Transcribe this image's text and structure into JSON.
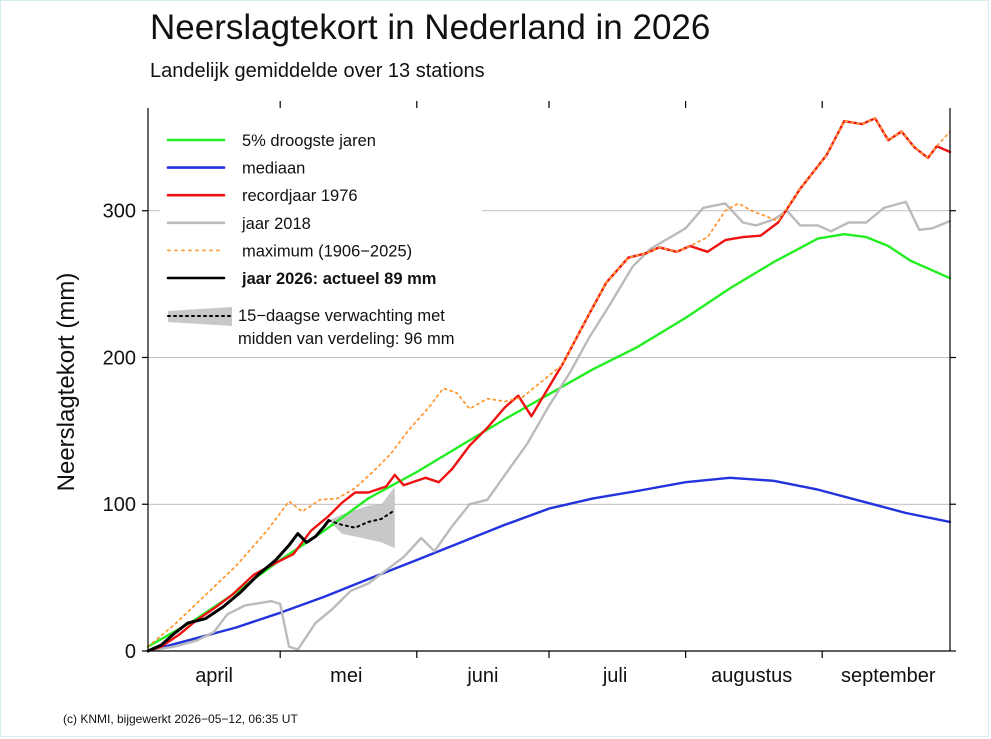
{
  "title": "Neerslagtekort in Nederland in 2026",
  "subtitle": "Landelijk gemiddelde over 13 stations",
  "footer": "(c) KNMI, bijgewerkt 2026−05−12, 06:35 UT",
  "chart_data": {
    "type": "line",
    "xlabel": "",
    "ylabel": "Neerslagtekort (mm)",
    "xlim": [
      "2026-04-01",
      "2026-09-30"
    ],
    "ylim": [
      0,
      370
    ],
    "yticks": [
      0,
      100,
      200,
      300
    ],
    "grid": true,
    "legend_position": "top-left",
    "month_labels": [
      {
        "label": "april",
        "date": "2026-04-16"
      },
      {
        "label": "mei",
        "date": "2026-05-16"
      },
      {
        "label": "juni",
        "date": "2026-06-16"
      },
      {
        "label": "juli",
        "date": "2026-07-16"
      },
      {
        "label": "augustus",
        "date": "2026-08-16"
      },
      {
        "label": "september",
        "date": "2026-09-16"
      }
    ],
    "month_boundaries": [
      "2026-05-01",
      "2026-06-01",
      "2026-07-01",
      "2026-08-01",
      "2026-09-01"
    ],
    "series": [
      {
        "id": "pct5",
        "name": "5% droogste jaren",
        "color": "#22ee22",
        "style": "solid",
        "points": [
          [
            "2026-04-01",
            3
          ],
          [
            "2026-04-11",
            20
          ],
          [
            "2026-04-21",
            40
          ],
          [
            "2026-05-01",
            62
          ],
          [
            "2026-05-11",
            82
          ],
          [
            "2026-05-21",
            104
          ],
          [
            "2026-06-01",
            122
          ],
          [
            "2026-06-11",
            140
          ],
          [
            "2026-06-21",
            158
          ],
          [
            "2026-07-01",
            175
          ],
          [
            "2026-07-11",
            192
          ],
          [
            "2026-07-21",
            207
          ],
          [
            "2026-08-01",
            227
          ],
          [
            "2026-08-11",
            247
          ],
          [
            "2026-08-21",
            265
          ],
          [
            "2026-08-31",
            281
          ],
          [
            "2026-09-06",
            284
          ],
          [
            "2026-09-11",
            282
          ],
          [
            "2026-09-16",
            276
          ],
          [
            "2026-09-21",
            266
          ],
          [
            "2026-09-30",
            254
          ]
        ]
      },
      {
        "id": "median",
        "name": "mediaan",
        "color": "#2233dd",
        "style": "solid",
        "points": [
          [
            "2026-04-01",
            0
          ],
          [
            "2026-04-11",
            8
          ],
          [
            "2026-04-21",
            16
          ],
          [
            "2026-05-01",
            26
          ],
          [
            "2026-05-11",
            37
          ],
          [
            "2026-05-21",
            49
          ],
          [
            "2026-06-01",
            62
          ],
          [
            "2026-06-11",
            74
          ],
          [
            "2026-06-21",
            86
          ],
          [
            "2026-07-01",
            97
          ],
          [
            "2026-07-11",
            104
          ],
          [
            "2026-07-21",
            109
          ],
          [
            "2026-08-01",
            115
          ],
          [
            "2026-08-11",
            118
          ],
          [
            "2026-08-21",
            116
          ],
          [
            "2026-08-31",
            110
          ],
          [
            "2026-09-10",
            102
          ],
          [
            "2026-09-20",
            94
          ],
          [
            "2026-09-30",
            88
          ]
        ]
      },
      {
        "id": "record1976",
        "name": "recordjaar 1976",
        "color": "#ee1111",
        "style": "solid",
        "points": [
          [
            "2026-04-01",
            0
          ],
          [
            "2026-04-04",
            3
          ],
          [
            "2026-04-08",
            11
          ],
          [
            "2026-04-12",
            21
          ],
          [
            "2026-04-16",
            29
          ],
          [
            "2026-04-20",
            38
          ],
          [
            "2026-04-25",
            52
          ],
          [
            "2026-04-30",
            60
          ],
          [
            "2026-05-04",
            66
          ],
          [
            "2026-05-08",
            82
          ],
          [
            "2026-05-12",
            92
          ],
          [
            "2026-05-15",
            101
          ],
          [
            "2026-05-18",
            108
          ],
          [
            "2026-05-21",
            108
          ],
          [
            "2026-05-25",
            112
          ],
          [
            "2026-05-27",
            120
          ],
          [
            "2026-05-29",
            113
          ],
          [
            "2026-06-03",
            118
          ],
          [
            "2026-06-06",
            115
          ],
          [
            "2026-06-09",
            124
          ],
          [
            "2026-06-13",
            140
          ],
          [
            "2026-06-17",
            152
          ],
          [
            "2026-06-21",
            166
          ],
          [
            "2026-06-24",
            174
          ],
          [
            "2026-06-27",
            160
          ],
          [
            "2026-07-04",
            195
          ],
          [
            "2026-07-10",
            229
          ],
          [
            "2026-07-14",
            251
          ],
          [
            "2026-07-19",
            268
          ],
          [
            "2026-07-23",
            271
          ],
          [
            "2026-07-26",
            275
          ],
          [
            "2026-07-30",
            272
          ],
          [
            "2026-08-02",
            276
          ],
          [
            "2026-08-06",
            272
          ],
          [
            "2026-08-10",
            280
          ],
          [
            "2026-08-14",
            282
          ],
          [
            "2026-08-18",
            283
          ],
          [
            "2026-08-22",
            292
          ],
          [
            "2026-08-27",
            315
          ],
          [
            "2026-09-02",
            338
          ],
          [
            "2026-09-06",
            361
          ],
          [
            "2026-09-10",
            359
          ],
          [
            "2026-09-13",
            363
          ],
          [
            "2026-09-16",
            348
          ],
          [
            "2026-09-19",
            354
          ],
          [
            "2026-09-22",
            343
          ],
          [
            "2026-09-25",
            336
          ],
          [
            "2026-09-27",
            344
          ],
          [
            "2026-09-30",
            340
          ]
        ]
      },
      {
        "id": "year2018",
        "name": "jaar 2018",
        "color": "#bbbbbb",
        "style": "solid",
        "points": [
          [
            "2026-04-01",
            0
          ],
          [
            "2026-04-07",
            3
          ],
          [
            "2026-04-12",
            7
          ],
          [
            "2026-04-16",
            13
          ],
          [
            "2026-04-19",
            25
          ],
          [
            "2026-04-23",
            31
          ],
          [
            "2026-04-27",
            33
          ],
          [
            "2026-04-29",
            34
          ],
          [
            "2026-05-01",
            32
          ],
          [
            "2026-05-03",
            3
          ],
          [
            "2026-05-05",
            1
          ],
          [
            "2026-05-09",
            19
          ],
          [
            "2026-05-13",
            29
          ],
          [
            "2026-05-17",
            41
          ],
          [
            "2026-05-21",
            46
          ],
          [
            "2026-05-25",
            55
          ],
          [
            "2026-05-29",
            64
          ],
          [
            "2026-06-02",
            77
          ],
          [
            "2026-06-05",
            68
          ],
          [
            "2026-06-09",
            85
          ],
          [
            "2026-06-13",
            100
          ],
          [
            "2026-06-17",
            103
          ],
          [
            "2026-06-21",
            120
          ],
          [
            "2026-06-26",
            141
          ],
          [
            "2026-07-01",
            167
          ],
          [
            "2026-07-06",
            191
          ],
          [
            "2026-07-10",
            213
          ],
          [
            "2026-07-15",
            237
          ],
          [
            "2026-07-20",
            262
          ],
          [
            "2026-07-24",
            274
          ],
          [
            "2026-07-28",
            281
          ],
          [
            "2026-08-01",
            288
          ],
          [
            "2026-08-05",
            302
          ],
          [
            "2026-08-10",
            305
          ],
          [
            "2026-08-14",
            292
          ],
          [
            "2026-08-17",
            290
          ],
          [
            "2026-08-21",
            294
          ],
          [
            "2026-08-24",
            300
          ],
          [
            "2026-08-27",
            290
          ],
          [
            "2026-08-31",
            290
          ],
          [
            "2026-09-03",
            286
          ],
          [
            "2026-09-07",
            292
          ],
          [
            "2026-09-11",
            292
          ],
          [
            "2026-09-15",
            302
          ],
          [
            "2026-09-20",
            306
          ],
          [
            "2026-09-23",
            287
          ],
          [
            "2026-09-26",
            288
          ],
          [
            "2026-09-30",
            293
          ]
        ]
      },
      {
        "id": "maximum",
        "name": "maximum (1906−2025)",
        "color": "#ff9933",
        "style": "dotted",
        "points": [
          [
            "2026-04-01",
            3
          ],
          [
            "2026-04-07",
            18
          ],
          [
            "2026-04-14",
            38
          ],
          [
            "2026-04-21",
            58
          ],
          [
            "2026-04-28",
            82
          ],
          [
            "2026-05-03",
            102
          ],
          [
            "2026-05-06",
            95
          ],
          [
            "2026-05-10",
            103
          ],
          [
            "2026-05-14",
            104
          ],
          [
            "2026-05-18",
            111
          ],
          [
            "2026-05-22",
            122
          ],
          [
            "2026-05-26",
            134
          ],
          [
            "2026-05-30",
            150
          ],
          [
            "2026-06-04",
            167
          ],
          [
            "2026-06-07",
            179
          ],
          [
            "2026-06-10",
            176
          ],
          [
            "2026-06-13",
            165
          ],
          [
            "2026-06-17",
            172
          ],
          [
            "2026-06-21",
            170
          ],
          [
            "2026-06-25",
            173
          ],
          [
            "2026-07-04",
            195
          ],
          [
            "2026-07-10",
            229
          ],
          [
            "2026-07-14",
            251
          ],
          [
            "2026-07-19",
            268
          ],
          [
            "2026-07-23",
            271
          ],
          [
            "2026-07-26",
            275
          ],
          [
            "2026-07-30",
            272
          ],
          [
            "2026-08-02",
            276
          ],
          [
            "2026-08-06",
            282
          ],
          [
            "2026-08-10",
            300
          ],
          [
            "2026-08-13",
            305
          ],
          [
            "2026-08-16",
            300
          ],
          [
            "2026-08-22",
            293
          ],
          [
            "2026-08-27",
            315
          ],
          [
            "2026-09-02",
            338
          ],
          [
            "2026-09-06",
            361
          ],
          [
            "2026-09-10",
            359
          ],
          [
            "2026-09-13",
            363
          ],
          [
            "2026-09-16",
            348
          ],
          [
            "2026-09-19",
            354
          ],
          [
            "2026-09-22",
            343
          ],
          [
            "2026-09-25",
            336
          ],
          [
            "2026-09-27",
            344
          ],
          [
            "2026-09-30",
            354
          ]
        ]
      },
      {
        "id": "year2026",
        "name": "jaar 2026: actueel 89 mm",
        "color": "#000000",
        "style": "solid",
        "bold_label": true,
        "points": [
          [
            "2026-04-01",
            0
          ],
          [
            "2026-04-04",
            4
          ],
          [
            "2026-04-07",
            12
          ],
          [
            "2026-04-10",
            19
          ],
          [
            "2026-04-14",
            22
          ],
          [
            "2026-04-18",
            30
          ],
          [
            "2026-04-22",
            40
          ],
          [
            "2026-04-26",
            52
          ],
          [
            "2026-04-30",
            62
          ],
          [
            "2026-05-03",
            72
          ],
          [
            "2026-05-05",
            80
          ],
          [
            "2026-05-07",
            74
          ],
          [
            "2026-05-09",
            78
          ],
          [
            "2026-05-11",
            85
          ],
          [
            "2026-05-12",
            89
          ]
        ]
      }
    ],
    "forecast": {
      "name": "15−daagse verwachting met midden van verdeling: 96 mm",
      "label_line1": "15−daagse verwachting met",
      "label_line2": "midden van verdeling: 96 mm",
      "band_color": "#c8c8c8",
      "median_color": "#000000",
      "median": [
        [
          "2026-05-12",
          89
        ],
        [
          "2026-05-15",
          86
        ],
        [
          "2026-05-18",
          84
        ],
        [
          "2026-05-21",
          88
        ],
        [
          "2026-05-24",
          90
        ],
        [
          "2026-05-27",
          96
        ]
      ],
      "lower": [
        [
          "2026-05-12",
          89
        ],
        [
          "2026-05-15",
          80
        ],
        [
          "2026-05-18",
          78
        ],
        [
          "2026-05-21",
          76
        ],
        [
          "2026-05-24",
          74
        ],
        [
          "2026-05-27",
          70
        ]
      ],
      "upper": [
        [
          "2026-05-12",
          89
        ],
        [
          "2026-05-15",
          93
        ],
        [
          "2026-05-18",
          96
        ],
        [
          "2026-05-21",
          99
        ],
        [
          "2026-05-24",
          100
        ],
        [
          "2026-05-27",
          112
        ]
      ]
    }
  }
}
